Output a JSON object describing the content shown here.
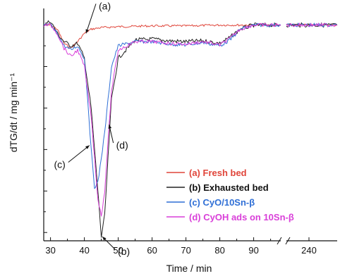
{
  "chart_data": {
    "type": "line",
    "title": "",
    "xlabel": "Time / min",
    "ylabel": "dTG/dt  / mg min⁻¹",
    "x_ticks_left": [
      30,
      40,
      50,
      60,
      70,
      80,
      90
    ],
    "x_ticks_right": [
      240
    ],
    "x_ticks_right_label": "240",
    "axis_break_symbol": "//",
    "xlim_left": [
      28,
      98
    ],
    "xlim_right": [
      232,
      250
    ],
    "ylim": [
      -2.6,
      0.2
    ],
    "y_ticks": [
      -2.5,
      -2.0,
      -1.5,
      -1.0,
      -0.5,
      0.0
    ],
    "grid": false,
    "legend_placement": "bottom-right",
    "series": [
      {
        "name": "(a) Fresh bed",
        "color": "#e0453a",
        "points": [
          [
            28,
            0
          ],
          [
            30,
            0
          ],
          [
            32,
            -0.05
          ],
          [
            34,
            -0.22
          ],
          [
            36,
            -0.28
          ],
          [
            38,
            -0.2
          ],
          [
            40,
            -0.1
          ],
          [
            42,
            -0.05
          ],
          [
            45,
            -0.03
          ],
          [
            50,
            -0.02
          ],
          [
            60,
            -0.01
          ],
          [
            70,
            -0.01
          ],
          [
            80,
            0
          ],
          [
            90,
            0
          ],
          [
            98,
            0
          ]
        ],
        "points_right": [
          [
            232,
            0
          ],
          [
            240,
            0
          ],
          [
            250,
            0
          ]
        ]
      },
      {
        "name": "(b) Exhausted bed",
        "color": "#222222",
        "points": [
          [
            28,
            0
          ],
          [
            30,
            0.05
          ],
          [
            32,
            -0.1
          ],
          [
            34,
            -0.2
          ],
          [
            36,
            -0.25
          ],
          [
            38,
            -0.22
          ],
          [
            40,
            -0.4
          ],
          [
            42,
            -1.0
          ],
          [
            44,
            -2.0
          ],
          [
            45,
            -2.55
          ],
          [
            46,
            -2.3
          ],
          [
            47,
            -1.6
          ],
          [
            48,
            -0.9
          ],
          [
            50,
            -0.4
          ],
          [
            55,
            -0.18
          ],
          [
            60,
            -0.17
          ],
          [
            65,
            -0.19
          ],
          [
            70,
            -0.2
          ],
          [
            75,
            -0.19
          ],
          [
            80,
            -0.22
          ],
          [
            83,
            -0.15
          ],
          [
            86,
            -0.05
          ],
          [
            90,
            0
          ],
          [
            98,
            0
          ]
        ],
        "points_right": [
          [
            232,
            0
          ],
          [
            240,
            0
          ],
          [
            250,
            0
          ]
        ]
      },
      {
        "name": "(c) CyO/10Sn-β",
        "color": "#2f6fd6",
        "points": [
          [
            28,
            0
          ],
          [
            30,
            0
          ],
          [
            32,
            -0.1
          ],
          [
            34,
            -0.25
          ],
          [
            36,
            -0.3
          ],
          [
            38,
            -0.25
          ],
          [
            40,
            -0.4
          ],
          [
            41,
            -0.9
          ],
          [
            42,
            -1.5
          ],
          [
            43,
            -1.95
          ],
          [
            44,
            -1.9
          ],
          [
            45,
            -1.6
          ],
          [
            46,
            -1.3
          ],
          [
            47,
            -0.9
          ],
          [
            48,
            -0.5
          ],
          [
            50,
            -0.25
          ],
          [
            55,
            -0.2
          ],
          [
            60,
            -0.2
          ],
          [
            65,
            -0.23
          ],
          [
            70,
            -0.24
          ],
          [
            75,
            -0.21
          ],
          [
            80,
            -0.25
          ],
          [
            83,
            -0.18
          ],
          [
            86,
            -0.05
          ],
          [
            90,
            0
          ],
          [
            98,
            0
          ]
        ],
        "points_right": [
          [
            232,
            0
          ],
          [
            240,
            0
          ],
          [
            250,
            0
          ]
        ]
      },
      {
        "name": "(d) CyOH ads on 10Sn-β",
        "color": "#d93fd9",
        "points": [
          [
            28,
            0
          ],
          [
            30,
            0
          ],
          [
            32,
            -0.1
          ],
          [
            34,
            -0.28
          ],
          [
            36,
            -0.38
          ],
          [
            38,
            -0.3
          ],
          [
            40,
            -0.5
          ],
          [
            42,
            -1.1
          ],
          [
            43,
            -1.6
          ],
          [
            44,
            -2.1
          ],
          [
            45,
            -2.3
          ],
          [
            46,
            -2.0
          ],
          [
            47,
            -1.4
          ],
          [
            48,
            -0.8
          ],
          [
            50,
            -0.3
          ],
          [
            55,
            -0.2
          ],
          [
            60,
            -0.2
          ],
          [
            65,
            -0.22
          ],
          [
            70,
            -0.23
          ],
          [
            75,
            -0.2
          ],
          [
            80,
            -0.24
          ],
          [
            83,
            -0.16
          ],
          [
            86,
            -0.05
          ],
          [
            90,
            0
          ],
          [
            98,
            0
          ]
        ],
        "points_right": [
          [
            232,
            0
          ],
          [
            240,
            0
          ],
          [
            250,
            0
          ]
        ]
      }
    ],
    "annotations": [
      {
        "label": "(a)",
        "x": 40.5,
        "y": -0.1
      },
      {
        "label": "(b)",
        "x": 45.3,
        "y": -2.55
      },
      {
        "label": "(c)",
        "x": 41.5,
        "y": -1.45
      },
      {
        "label": "(d)",
        "x": 47.3,
        "y": -1.2
      }
    ]
  }
}
